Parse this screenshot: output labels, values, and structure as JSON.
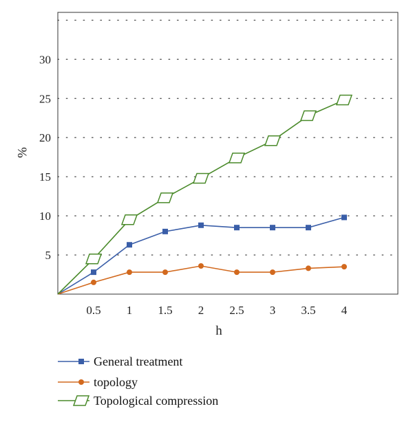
{
  "chart_data": {
    "type": "line",
    "xlabel": "h",
    "ylabel": "%",
    "x": [
      0,
      0.5,
      1,
      1.5,
      2,
      2.5,
      3,
      3.5,
      4
    ],
    "x_ticks": [
      "0.5",
      "1",
      "1.5",
      "2",
      "2.5",
      "3",
      "3.5",
      "4"
    ],
    "y_ticks": [
      "5",
      "10",
      "15",
      "20",
      "25",
      "30"
    ],
    "xlim": [
      0,
      4.75
    ],
    "ylim": [
      0,
      36
    ],
    "grid": "horizontal dotted",
    "legend_position": "bottom-left",
    "series": [
      {
        "name": "General treatment",
        "color": "#3a5ea8",
        "marker": "square",
        "values": [
          0,
          2.8,
          6.3,
          8.0,
          8.8,
          8.5,
          8.5,
          8.5,
          9.8
        ]
      },
      {
        "name": "topology",
        "color": "#d2691e",
        "marker": "circle",
        "values": [
          0,
          1.5,
          2.8,
          2.8,
          3.6,
          2.8,
          2.8,
          3.3,
          3.5
        ]
      },
      {
        "name": "Topological compression",
        "color": "#4a8a2a",
        "marker": "diamond",
        "values": [
          0,
          4.5,
          9.5,
          12.3,
          14.8,
          17.4,
          19.6,
          22.8,
          24.8
        ]
      }
    ]
  }
}
